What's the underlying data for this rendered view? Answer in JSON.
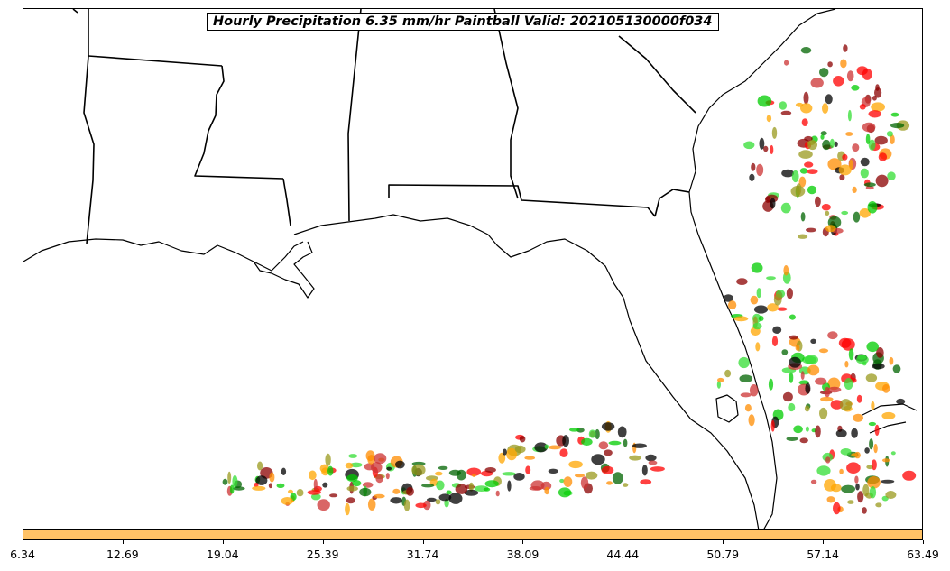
{
  "title": "Hourly Precipitation 6.35 mm/hr Paintball Valid: 202105130000f034",
  "colorbar": {
    "color": "#ffc266",
    "ticks": [
      "6.34",
      "12.69",
      "19.04",
      "25.39",
      "31.74",
      "38.09",
      "44.44",
      "50.79",
      "57.14",
      "63.49"
    ]
  },
  "paintball_colors": [
    "#ff0000",
    "#ff8c00",
    "#00cc00",
    "#006400",
    "#8b0000",
    "#000000",
    "#9a9a1e",
    "#cc3333",
    "#ffa500",
    "#33dd33"
  ],
  "icons": [
    "coastline-outline",
    "state-boundary-lines",
    "precipitation-blobs"
  ]
}
